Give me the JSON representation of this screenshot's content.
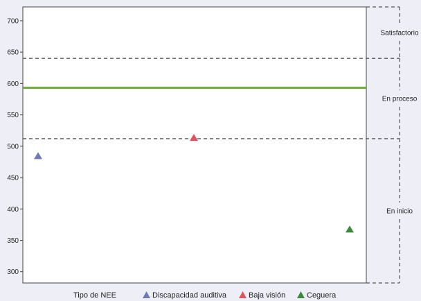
{
  "chart_data": {
    "type": "scatter",
    "y_ticks": [
      300,
      350,
      400,
      450,
      500,
      550,
      600,
      650,
      700
    ],
    "ylim": [
      282,
      722
    ],
    "categories": [
      "Discapacidad auditiva",
      "Baja visión",
      "Ceguera"
    ],
    "series": [
      {
        "name": "Discapacidad auditiva",
        "value": 485,
        "color": "#7079b8"
      },
      {
        "name": "Baja visión",
        "value": 514,
        "color": "#e2525b"
      },
      {
        "name": "Ceguera",
        "value": 368,
        "color": "#3a8a3e"
      }
    ],
    "reference_line": {
      "value": 593,
      "color": "#6aab3a"
    },
    "thresholds": [
      512,
      640
    ],
    "levels": [
      {
        "label": "Satisfactorio",
        "from": 640,
        "to": 722
      },
      {
        "label": "En proceso",
        "from": 512,
        "to": 640
      },
      {
        "label": "En inicio",
        "from": 282,
        "to": 512
      }
    ],
    "legend_title": "Tipo de NEE",
    "grid": false
  }
}
